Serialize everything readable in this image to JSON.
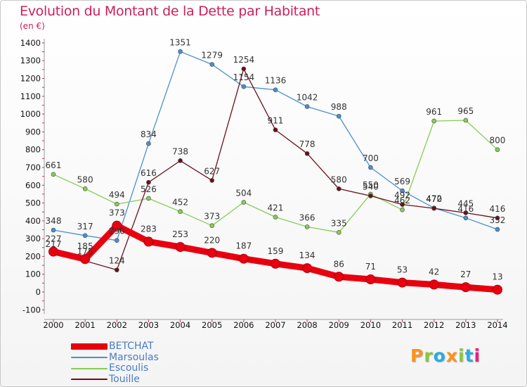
{
  "header": {
    "title": "Evolution du Montant de la Dette par Habitant",
    "subtitle": "(en €)"
  },
  "logo": {
    "text": "Proxiti",
    "colors": [
      "#f7941d",
      "#8bc53f",
      "#29abe2",
      "#f7941d",
      "#8bc53f",
      "#29abe2",
      "#ed1c7a"
    ]
  },
  "chart_data": {
    "type": "line",
    "title": "Evolution du Montant de la Dette par Habitant",
    "subtitle": "(en €)",
    "xlabel": "",
    "ylabel": "",
    "x": [
      2000,
      2001,
      2002,
      2003,
      2004,
      2005,
      2006,
      2007,
      2008,
      2009,
      2010,
      2011,
      2012,
      2013,
      2014
    ],
    "y_ticks": [
      -100,
      0,
      100,
      200,
      300,
      400,
      500,
      600,
      700,
      800,
      900,
      1000,
      1100,
      1200,
      1300,
      1400
    ],
    "ylim": [
      -100,
      1400
    ],
    "grid": false,
    "legend_position": "bottom-left",
    "series": [
      {
        "name": "BETCHAT",
        "color": "#e8000f",
        "values": [
          227,
          185,
          373,
          283,
          253,
          220,
          187,
          159,
          134,
          86,
          71,
          53,
          42,
          27,
          13
        ]
      },
      {
        "name": "Marsoulas",
        "color": "#4a90d0",
        "values": [
          348,
          317,
          290,
          834,
          1351,
          1279,
          1154,
          1136,
          1042,
          988,
          700,
          569,
          472,
          416,
          352
        ]
      },
      {
        "name": "Escoulis",
        "color": "#88cc55",
        "values": [
          661,
          580,
          494,
          526,
          452,
          373,
          504,
          421,
          366,
          335,
          550,
          462,
          961,
          965,
          800
        ]
      },
      {
        "name": "Touille",
        "color": "#6b0f1a",
        "values": [
          217,
          175,
          124,
          616,
          738,
          627,
          1254,
          911,
          778,
          580,
          540,
          492,
          470,
          445,
          416
        ]
      }
    ]
  }
}
